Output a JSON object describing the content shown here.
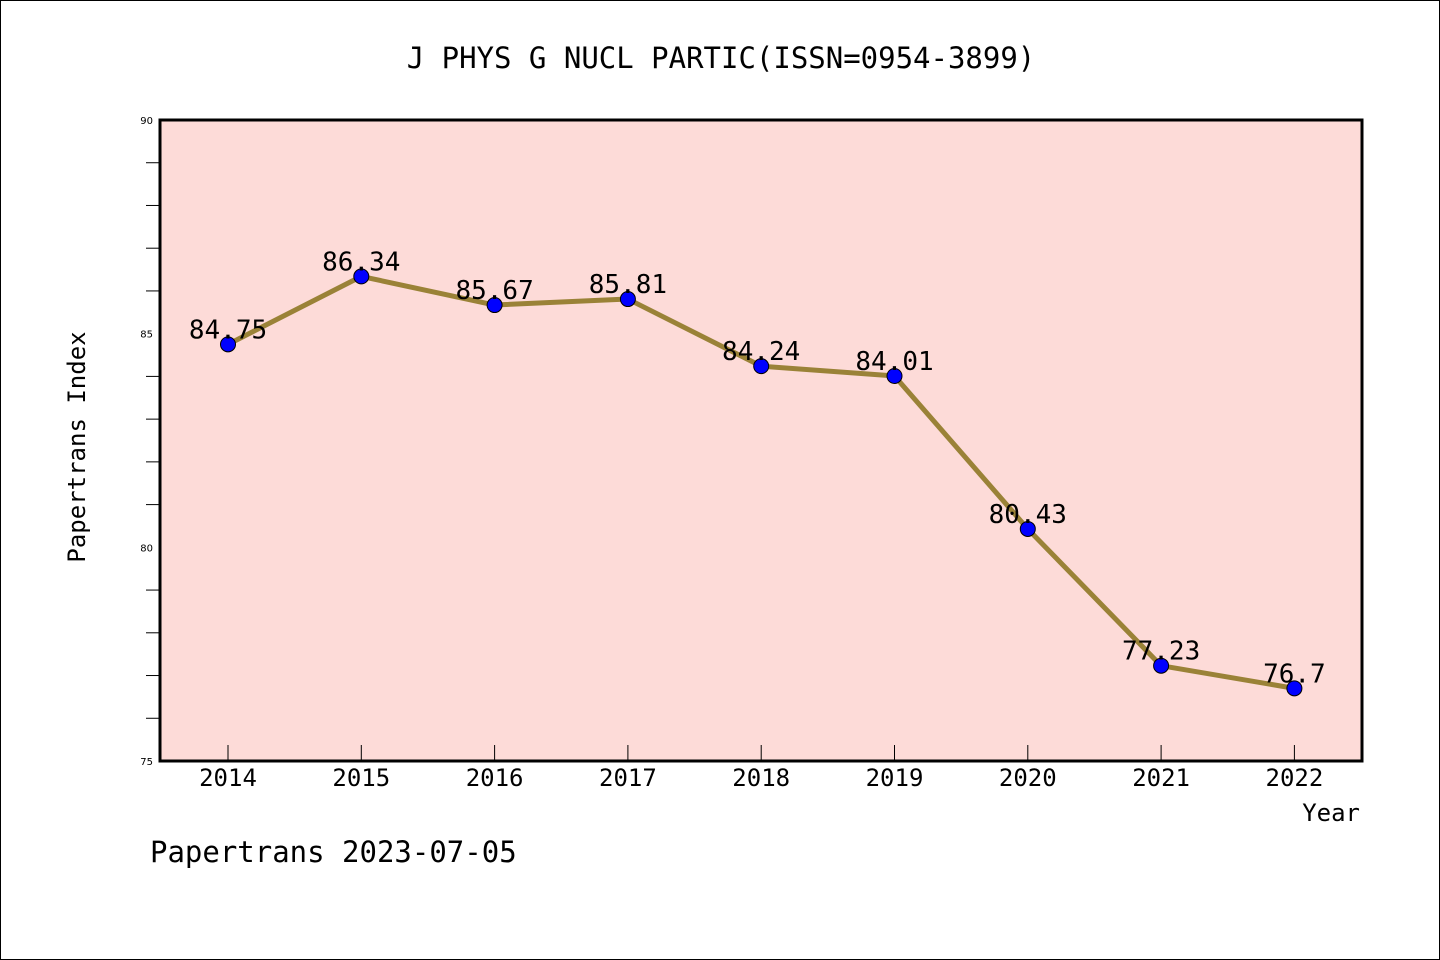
{
  "chart_data": {
    "type": "line",
    "title": "J PHYS G NUCL PARTIC(ISSN=0954-3899)",
    "xlabel": "Year",
    "ylabel": "Papertrans Index",
    "categories": [
      "2014",
      "2015",
      "2016",
      "2017",
      "2018",
      "2019",
      "2020",
      "2021",
      "2022"
    ],
    "series": [
      {
        "values": [
          84.75,
          86.34,
          85.67,
          85.81,
          84.24,
          84.01,
          80.43,
          77.23,
          76.7
        ]
      }
    ],
    "data_labels": [
      "84.75",
      "86.34",
      "85.67",
      "85.81",
      "84.24",
      "84.01",
      "80.43",
      "77.23",
      "76.7"
    ],
    "ylim": [
      75,
      90
    ],
    "yticks": [
      75,
      80,
      85,
      90
    ],
    "grid": false,
    "colors": {
      "plot_background": "#fddbd8",
      "line": "#9a8237",
      "marker": "#0000ff"
    }
  },
  "footer": "Papertrans 2023-07-05"
}
